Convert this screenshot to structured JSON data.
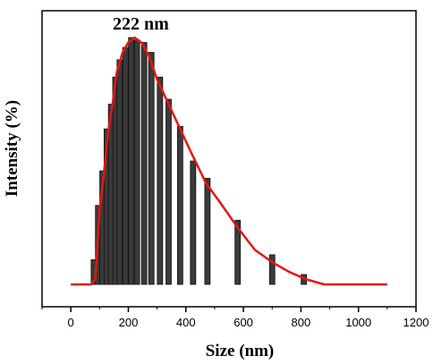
{
  "chart_data": {
    "type": "bar",
    "title": "",
    "xlabel": "Size (nm)",
    "ylabel": "Intensity (%)",
    "xlim": [
      -100,
      1200
    ],
    "ylim": [
      0,
      100
    ],
    "x_ticks": [
      "0",
      "200",
      "400",
      "600",
      "800",
      "1000",
      "1200"
    ],
    "y_ticks_labeled": false,
    "annotation": "222 nm",
    "bar_color": "#3a3a3a",
    "curve_color": "#e8140f",
    "bars": {
      "x": [
        80,
        95,
        110,
        125,
        140,
        155,
        170,
        190,
        210,
        230,
        255,
        280,
        310,
        340,
        380,
        425,
        475,
        580,
        700,
        810
      ],
      "y": [
        10,
        32,
        46,
        63,
        73,
        84,
        91,
        96,
        100,
        99,
        98,
        94,
        84,
        75,
        64,
        50,
        43,
        26,
        12,
        4
      ]
    },
    "curve": {
      "x": [
        0,
        70,
        85,
        100,
        115,
        130,
        145,
        160,
        180,
        200,
        222,
        245,
        270,
        300,
        340,
        380,
        420,
        470,
        520,
        580,
        640,
        700,
        760,
        820,
        880,
        950,
        1100
      ],
      "y": [
        0,
        0,
        2,
        30,
        45,
        62,
        73,
        86,
        94,
        98,
        100,
        98,
        93,
        83,
        73,
        63,
        53,
        41,
        33,
        23,
        14,
        9,
        5,
        2,
        0,
        0,
        0
      ]
    }
  }
}
